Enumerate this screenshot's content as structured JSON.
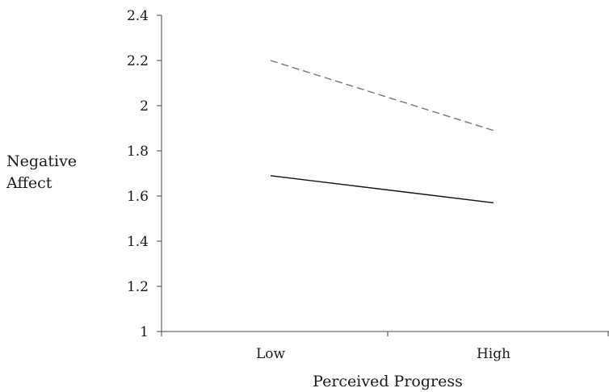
{
  "chart_data": {
    "type": "line",
    "title": "",
    "xlabel": "Perceived Progress",
    "ylabel_lines": [
      "Negative",
      "Affect"
    ],
    "categories": [
      "Low",
      "High"
    ],
    "ylim": [
      1,
      2.4
    ],
    "yticks": [
      "1",
      "1.2",
      "1.4",
      "1.6",
      "1.8",
      "2",
      "2.2",
      "2.4"
    ],
    "grid": false,
    "series": [
      {
        "style": "dashed",
        "color": "#777777",
        "values": [
          2.2,
          1.89
        ]
      },
      {
        "style": "solid",
        "color": "#111111",
        "values": [
          1.69,
          1.57
        ]
      }
    ]
  }
}
